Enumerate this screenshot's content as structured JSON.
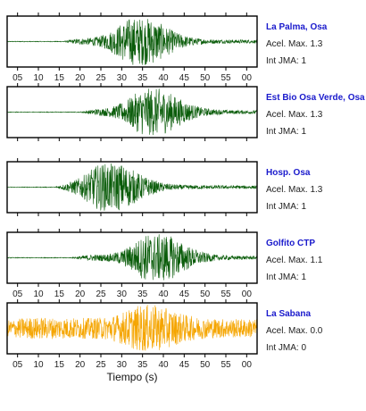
{
  "chart_data": {
    "type": "line",
    "xlabel": "Tiempo (s)",
    "tick_labels": [
      "05",
      "10",
      "15",
      "20",
      "25",
      "30",
      "35",
      "40",
      "45",
      "50",
      "55",
      "00"
    ],
    "x_ticks": [
      5,
      10,
      15,
      20,
      25,
      30,
      35,
      40,
      45,
      50,
      55,
      60
    ],
    "xlim": [
      2.5,
      62.5
    ],
    "grid": false,
    "stations": [
      {
        "name": "La Palma, Osa",
        "acel_label": "Acel. Max. 1.3",
        "int_label": "Int JMA: 1",
        "color": "#0a5c0a",
        "onset": 16,
        "peak_time": 34,
        "amp": 1.0,
        "noise": 0.015
      },
      {
        "name": "Est Bio Osa Verde, Osa",
        "acel_label": "Acel. Max. 1.3",
        "int_label": "Int JMA: 1",
        "color": "#0a5c0a",
        "onset": 20,
        "peak_time": 37,
        "amp": 0.95,
        "noise": 0.015
      },
      {
        "name": "Hosp. Osa",
        "acel_label": "Acel. Max. 1.3",
        "int_label": "Int JMA: 1",
        "color": "#0a5c0a",
        "onset": 14,
        "peak_time": 27,
        "amp": 1.0,
        "noise": 0.015
      },
      {
        "name": "Golfito CTP",
        "acel_label": "Acel. Max. 1.1",
        "int_label": "Int JMA: 1",
        "color": "#0a5c0a",
        "onset": 18,
        "peak_time": 38,
        "amp": 1.0,
        "noise": 0.015
      },
      {
        "name": "La Sabana",
        "acel_label": "Acel. Max. 0.0",
        "int_label": "Int JMA: 0",
        "color": "#f5a500",
        "onset": 3,
        "peak_time": 36,
        "amp": 0.6,
        "noise": 0.35
      }
    ]
  }
}
